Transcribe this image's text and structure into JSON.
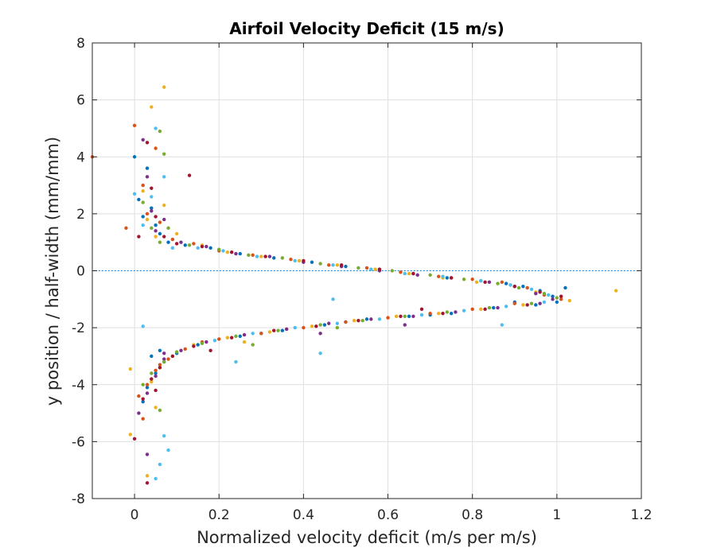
{
  "chart_data": {
    "type": "scatter",
    "title": "Airfoil Velocity Deficit (15 m/s)",
    "xlabel": "Normalized velocity deficit (m/s per m/s)",
    "ylabel": "y position / half-width (mm/mm)",
    "xlim": [
      -0.1,
      1.2
    ],
    "ylim": [
      -8,
      8
    ],
    "xticks": [
      "0",
      "0.2",
      "0.4",
      "0.6",
      "0.8",
      "1",
      "1.2"
    ],
    "yticks": [
      "8",
      "6",
      "4",
      "2",
      "0",
      "-2",
      "-4",
      "-6",
      "-8"
    ],
    "grid": true,
    "legend": "none",
    "reference_line": {
      "y": 0,
      "style": "dotted",
      "color": "#0072BD"
    },
    "colors": [
      "#0072BD",
      "#D95319",
      "#EDB120",
      "#7E2F8E",
      "#77AC30",
      "#4DBEEE",
      "#A2142F"
    ],
    "series": [
      {
        "color": "#0072BD",
        "points": [
          [
            0.0,
            4.0
          ],
          [
            0.01,
            2.5
          ],
          [
            0.02,
            1.9
          ],
          [
            0.03,
            3.6
          ],
          [
            0.04,
            2.2
          ],
          [
            0.05,
            1.6
          ],
          [
            0.06,
            1.3
          ],
          [
            0.08,
            1.0
          ],
          [
            0.12,
            0.9
          ],
          [
            0.18,
            0.8
          ],
          [
            0.25,
            0.6
          ],
          [
            0.33,
            0.45
          ],
          [
            0.42,
            0.3
          ],
          [
            0.5,
            0.15
          ],
          [
            0.58,
            0.05
          ],
          [
            0.66,
            -0.1
          ],
          [
            0.74,
            -0.25
          ],
          [
            0.82,
            -0.35
          ],
          [
            0.88,
            -0.45
          ],
          [
            0.92,
            -0.55
          ],
          [
            0.96,
            -0.7
          ],
          [
            0.99,
            -0.9
          ],
          [
            1.02,
            -0.6
          ],
          [
            1.0,
            -1.1
          ],
          [
            0.95,
            -1.2
          ],
          [
            0.85,
            -1.3
          ],
          [
            0.75,
            -1.5
          ],
          [
            0.65,
            -1.6
          ],
          [
            0.55,
            -1.7
          ],
          [
            0.45,
            -1.9
          ],
          [
            0.35,
            -2.1
          ],
          [
            0.25,
            -2.3
          ],
          [
            0.15,
            -2.6
          ],
          [
            0.1,
            -2.9
          ],
          [
            0.07,
            -3.2
          ],
          [
            0.05,
            -3.6
          ],
          [
            0.03,
            -4.1
          ],
          [
            0.02,
            -4.6
          ],
          [
            0.04,
            -3.0
          ],
          [
            0.06,
            -2.8
          ],
          [
            0.3,
            -2.2
          ],
          [
            0.5,
            -1.8
          ],
          [
            0.7,
            -1.55
          ],
          [
            0.9,
            -1.1
          ]
        ]
      },
      {
        "color": "#D95319",
        "points": [
          [
            0.0,
            5.1
          ],
          [
            -0.1,
            4.0
          ],
          [
            -0.02,
            1.5
          ],
          [
            0.02,
            3.0
          ],
          [
            0.03,
            2.0
          ],
          [
            0.05,
            4.3
          ],
          [
            0.06,
            1.7
          ],
          [
            0.09,
            1.1
          ],
          [
            0.14,
            0.95
          ],
          [
            0.2,
            0.7
          ],
          [
            0.28,
            0.55
          ],
          [
            0.37,
            0.4
          ],
          [
            0.46,
            0.2
          ],
          [
            0.55,
            0.1
          ],
          [
            0.63,
            -0.05
          ],
          [
            0.72,
            -0.2
          ],
          [
            0.8,
            -0.3
          ],
          [
            0.87,
            -0.4
          ],
          [
            0.93,
            -0.6
          ],
          [
            0.97,
            -0.85
          ],
          [
            1.01,
            -1.0
          ],
          [
            0.9,
            -1.15
          ],
          [
            0.8,
            -1.35
          ],
          [
            0.7,
            -1.5
          ],
          [
            0.6,
            -1.65
          ],
          [
            0.5,
            -1.8
          ],
          [
            0.4,
            -2.0
          ],
          [
            0.3,
            -2.2
          ],
          [
            0.2,
            -2.4
          ],
          [
            0.12,
            -2.75
          ],
          [
            0.08,
            -3.1
          ],
          [
            0.05,
            -3.5
          ],
          [
            0.03,
            -4.0
          ],
          [
            0.01,
            -4.4
          ],
          [
            0.02,
            -5.2
          ],
          [
            0.06,
            -3.3
          ],
          [
            0.16,
            -2.5
          ],
          [
            0.36,
            -2.05
          ]
        ]
      },
      {
        "color": "#EDB120",
        "points": [
          [
            0.04,
            5.75
          ],
          [
            0.07,
            6.45
          ],
          [
            0.02,
            2.8
          ],
          [
            0.03,
            1.8
          ],
          [
            0.05,
            1.2
          ],
          [
            0.07,
            2.3
          ],
          [
            0.1,
            1.3
          ],
          [
            0.16,
            0.9
          ],
          [
            0.22,
            0.65
          ],
          [
            0.3,
            0.5
          ],
          [
            0.39,
            0.35
          ],
          [
            0.48,
            0.2
          ],
          [
            0.57,
            0.05
          ],
          [
            0.65,
            -0.1
          ],
          [
            0.73,
            -0.25
          ],
          [
            0.81,
            -0.4
          ],
          [
            0.89,
            -0.5
          ],
          [
            0.95,
            -0.75
          ],
          [
            1.14,
            -0.7
          ],
          [
            1.03,
            -1.05
          ],
          [
            0.92,
            -1.2
          ],
          [
            0.82,
            -1.35
          ],
          [
            0.72,
            -1.5
          ],
          [
            0.62,
            -1.6
          ],
          [
            0.52,
            -1.75
          ],
          [
            0.42,
            -1.95
          ],
          [
            0.32,
            -2.15
          ],
          [
            0.22,
            -2.35
          ],
          [
            0.14,
            -2.6
          ],
          [
            0.09,
            -3.0
          ],
          [
            0.06,
            -3.4
          ],
          [
            0.04,
            -3.9
          ],
          [
            -0.01,
            -3.45
          ],
          [
            -0.01,
            -5.75
          ],
          [
            0.03,
            -7.2
          ],
          [
            0.05,
            -4.8
          ],
          [
            0.26,
            -2.5
          ]
        ]
      },
      {
        "color": "#7E2F8E",
        "points": [
          [
            0.02,
            4.6
          ],
          [
            0.03,
            3.3
          ],
          [
            0.04,
            2.1
          ],
          [
            0.05,
            1.4
          ],
          [
            0.07,
            1.8
          ],
          [
            0.11,
            1.0
          ],
          [
            0.17,
            0.85
          ],
          [
            0.24,
            0.6
          ],
          [
            0.32,
            0.5
          ],
          [
            0.4,
            0.3
          ],
          [
            0.49,
            0.15
          ],
          [
            0.58,
            0.0
          ],
          [
            0.67,
            -0.15
          ],
          [
            0.75,
            -0.25
          ],
          [
            0.84,
            -0.4
          ],
          [
            0.9,
            -0.55
          ],
          [
            0.95,
            -0.8
          ],
          [
            0.99,
            -1.0
          ],
          [
            0.96,
            -1.15
          ],
          [
            0.86,
            -1.3
          ],
          [
            0.76,
            -1.45
          ],
          [
            0.66,
            -1.6
          ],
          [
            0.56,
            -1.7
          ],
          [
            0.46,
            -1.85
          ],
          [
            0.36,
            -2.05
          ],
          [
            0.26,
            -2.25
          ],
          [
            0.17,
            -2.5
          ],
          [
            0.11,
            -2.8
          ],
          [
            0.07,
            -3.1
          ],
          [
            0.05,
            -3.7
          ],
          [
            0.03,
            -4.3
          ],
          [
            0.01,
            -5.0
          ],
          [
            0.03,
            -6.45
          ],
          [
            0.07,
            -2.9
          ],
          [
            0.44,
            -2.2
          ],
          [
            0.64,
            -1.9
          ]
        ]
      },
      {
        "color": "#77AC30",
        "points": [
          [
            0.06,
            4.9
          ],
          [
            0.07,
            4.1
          ],
          [
            0.02,
            2.4
          ],
          [
            0.04,
            1.5
          ],
          [
            0.06,
            1.0
          ],
          [
            0.08,
            1.5
          ],
          [
            0.13,
            0.9
          ],
          [
            0.2,
            0.75
          ],
          [
            0.27,
            0.55
          ],
          [
            0.35,
            0.45
          ],
          [
            0.44,
            0.25
          ],
          [
            0.53,
            0.1
          ],
          [
            0.61,
            0.0
          ],
          [
            0.7,
            -0.15
          ],
          [
            0.78,
            -0.3
          ],
          [
            0.86,
            -0.45
          ],
          [
            0.91,
            -0.6
          ],
          [
            0.97,
            -0.8
          ],
          [
            1.0,
            -0.95
          ],
          [
            0.94,
            -1.15
          ],
          [
            0.84,
            -1.3
          ],
          [
            0.74,
            -1.45
          ],
          [
            0.64,
            -1.6
          ],
          [
            0.54,
            -1.75
          ],
          [
            0.44,
            -1.9
          ],
          [
            0.34,
            -2.1
          ],
          [
            0.24,
            -2.3
          ],
          [
            0.16,
            -2.55
          ],
          [
            0.1,
            -2.85
          ],
          [
            0.07,
            -3.2
          ],
          [
            0.04,
            -3.6
          ],
          [
            0.02,
            -4.0
          ],
          [
            0.06,
            -4.9
          ],
          [
            0.28,
            -2.6
          ],
          [
            0.48,
            -2.0
          ]
        ]
      },
      {
        "color": "#4DBEEE",
        "points": [
          [
            0.05,
            5.0
          ],
          [
            0.0,
            2.7
          ],
          [
            0.02,
            1.6
          ],
          [
            0.04,
            2.6
          ],
          [
            0.07,
            3.3
          ],
          [
            0.09,
            0.8
          ],
          [
            0.15,
            0.8
          ],
          [
            0.21,
            0.7
          ],
          [
            0.29,
            0.5
          ],
          [
            0.38,
            0.35
          ],
          [
            0.47,
            0.2
          ],
          [
            0.56,
            0.05
          ],
          [
            0.64,
            -0.1
          ],
          [
            0.73,
            -0.2
          ],
          [
            0.82,
            -0.35
          ],
          [
            0.89,
            -0.5
          ],
          [
            0.94,
            -0.65
          ],
          [
            0.98,
            -0.85
          ],
          [
            0.97,
            -1.1
          ],
          [
            0.88,
            -1.25
          ],
          [
            0.78,
            -1.4
          ],
          [
            0.68,
            -1.55
          ],
          [
            0.58,
            -1.7
          ],
          [
            0.48,
            -1.85
          ],
          [
            0.38,
            -2.0
          ],
          [
            0.28,
            -2.2
          ],
          [
            0.19,
            -2.45
          ],
          [
            0.24,
            -3.2
          ],
          [
            0.44,
            -2.9
          ],
          [
            0.47,
            -1.0
          ],
          [
            0.87,
            -1.9
          ],
          [
            0.02,
            -1.95
          ],
          [
            0.07,
            -5.8
          ],
          [
            0.08,
            -6.3
          ],
          [
            0.06,
            -6.8
          ],
          [
            0.05,
            -7.3
          ]
        ]
      },
      {
        "color": "#A2142F",
        "points": [
          [
            0.01,
            1.2
          ],
          [
            0.03,
            4.5
          ],
          [
            0.04,
            2.9
          ],
          [
            0.05,
            1.9
          ],
          [
            0.07,
            1.2
          ],
          [
            0.13,
            3.35
          ],
          [
            0.1,
            0.95
          ],
          [
            0.16,
            0.85
          ],
          [
            0.23,
            0.65
          ],
          [
            0.31,
            0.5
          ],
          [
            0.4,
            0.35
          ],
          [
            0.49,
            0.2
          ],
          [
            0.58,
            0.05
          ],
          [
            0.66,
            -0.1
          ],
          [
            0.75,
            -0.25
          ],
          [
            0.83,
            -0.4
          ],
          [
            0.9,
            -0.55
          ],
          [
            0.96,
            -0.75
          ],
          [
            1.01,
            -0.9
          ],
          [
            0.93,
            -1.2
          ],
          [
            0.83,
            -1.35
          ],
          [
            0.73,
            -1.5
          ],
          [
            0.63,
            -1.6
          ],
          [
            0.53,
            -1.75
          ],
          [
            0.43,
            -1.95
          ],
          [
            0.33,
            -2.1
          ],
          [
            0.23,
            -2.35
          ],
          [
            0.14,
            -2.65
          ],
          [
            0.09,
            -3.0
          ],
          [
            0.06,
            -3.4
          ],
          [
            0.04,
            -3.8
          ],
          [
            0.02,
            -4.5
          ],
          [
            0.0,
            -5.9
          ],
          [
            0.03,
            -7.45
          ],
          [
            0.05,
            -4.2
          ],
          [
            0.18,
            -2.8
          ],
          [
            0.68,
            -1.35
          ]
        ]
      }
    ]
  }
}
